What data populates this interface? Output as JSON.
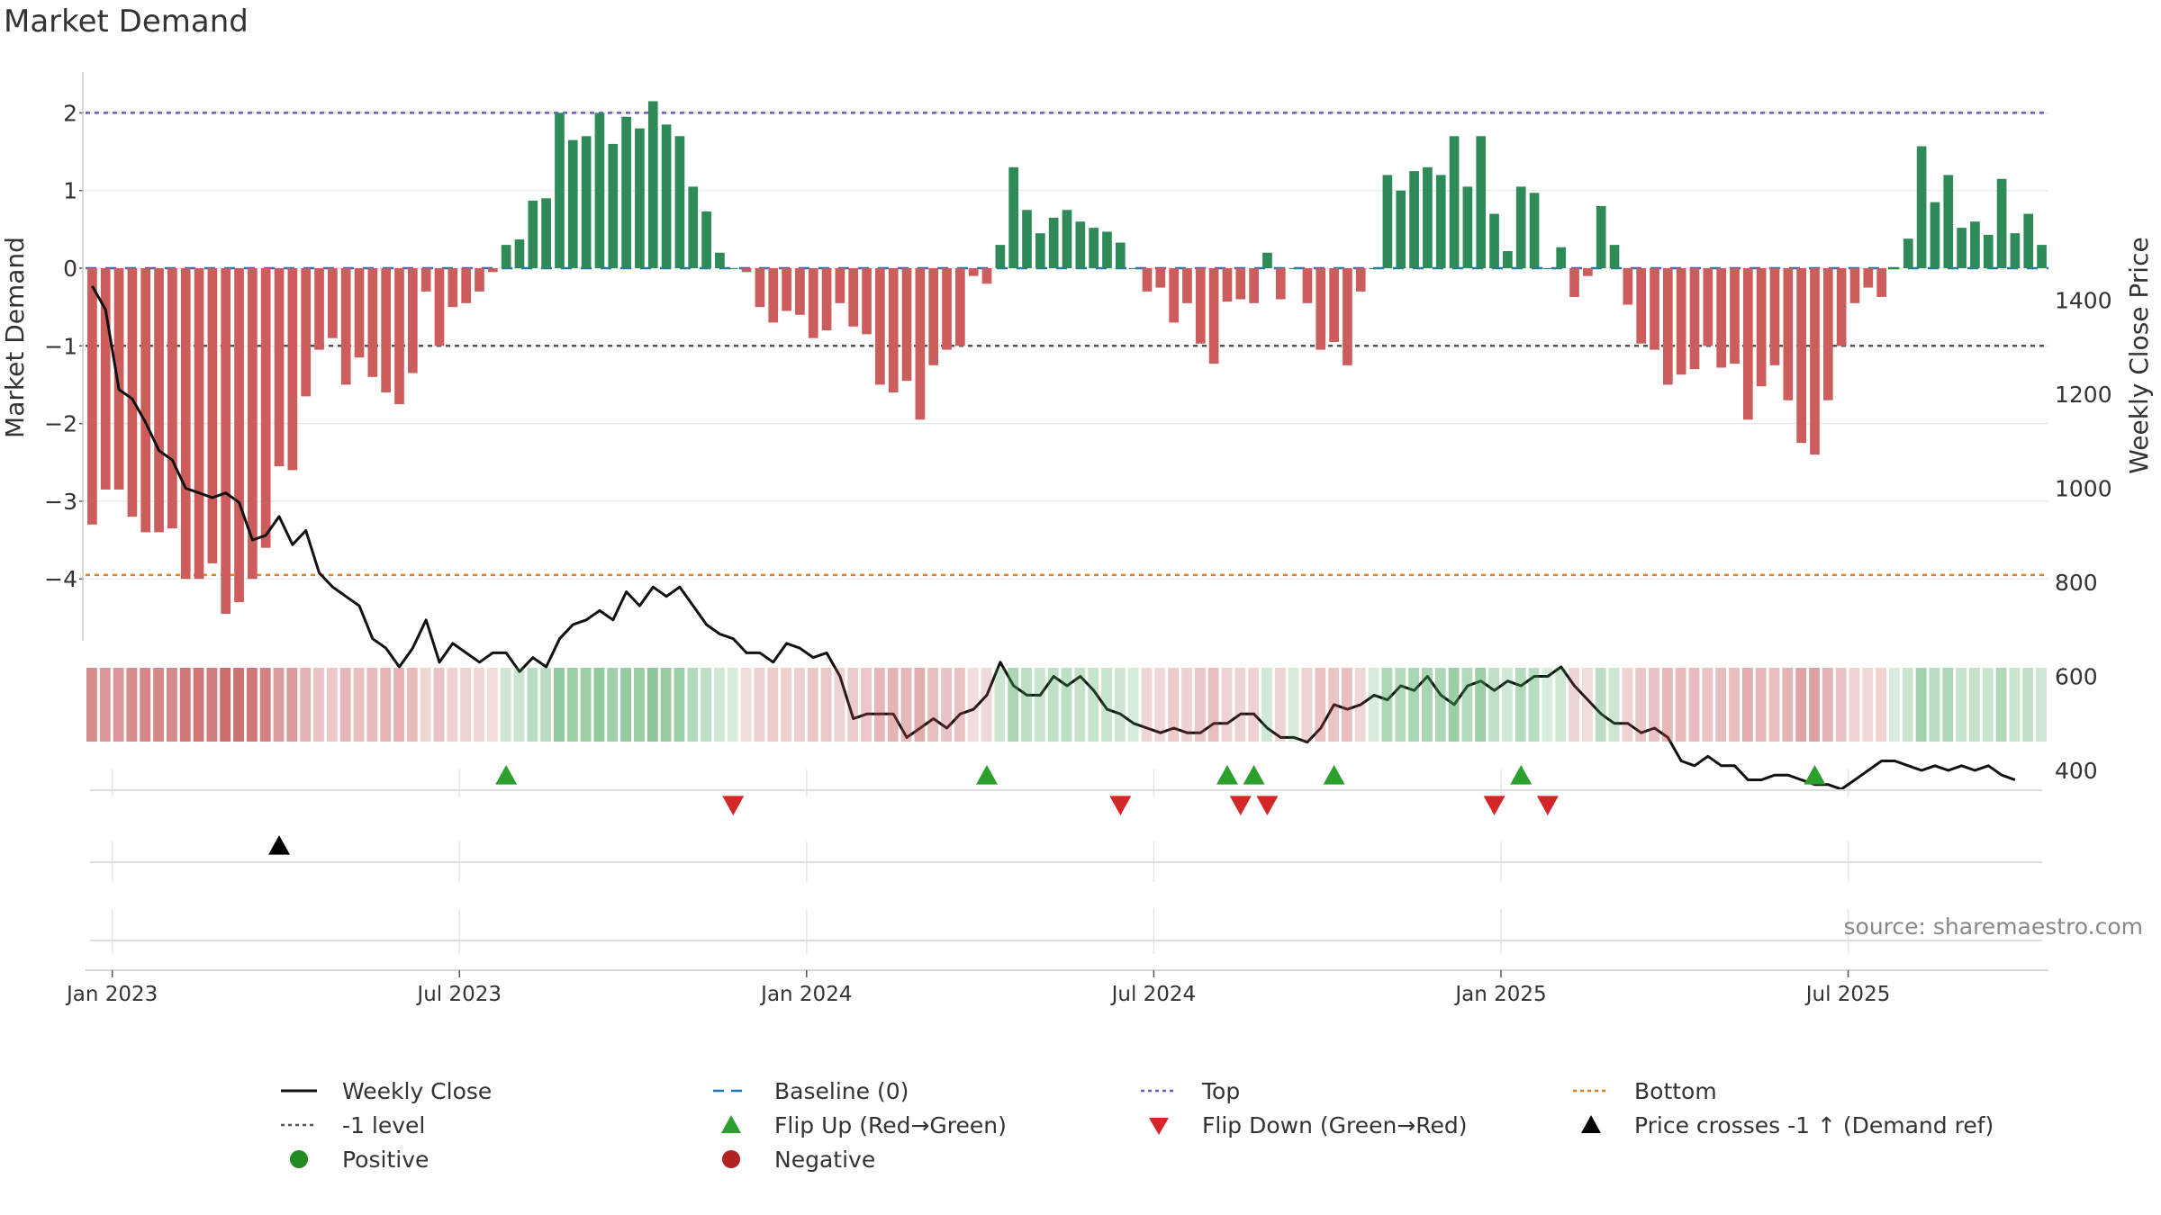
{
  "title": "Market Demand",
  "source": "source: sharemaestro.com",
  "colors": {
    "positive_bar": "#2e8b57",
    "negative_bar": "#cd5c5c",
    "price_line": "#111111",
    "baseline": "#1f77b4",
    "top": "#6a5acd",
    "bottom": "#e67e22",
    "level": "#555555",
    "flip_up": "#2ca02c",
    "flip_down": "#d62728",
    "cross": "#000000",
    "grid": "#e6e6e6",
    "positive_dot": "#228b22",
    "negative_dot": "#b22222"
  },
  "legend": [
    {
      "label": "Weekly Close",
      "symbol": "solid",
      "color": "#111111"
    },
    {
      "label": "Baseline (0)",
      "symbol": "dash",
      "color": "#1f77b4"
    },
    {
      "label": "Top",
      "symbol": "dot",
      "color": "#6a5acd"
    },
    {
      "label": "Bottom",
      "symbol": "dot",
      "color": "#e67e22"
    },
    {
      "label": "-1 level",
      "symbol": "dot",
      "color": "#555555"
    },
    {
      "label": "Flip Up (Red→Green)",
      "symbol": "tri-up",
      "color": "#2ca02c"
    },
    {
      "label": "Flip Down (Green→Red)",
      "symbol": "tri-down",
      "color": "#d62728"
    },
    {
      "label": "Price crosses -1 ↑ (Demand ref)",
      "symbol": "tri-up",
      "color": "#000000"
    },
    {
      "label": "Positive",
      "symbol": "circle",
      "color": "#228b22"
    },
    {
      "label": "Negative",
      "symbol": "circle",
      "color": "#b22222"
    }
  ],
  "chart_data": {
    "type": "bar",
    "title": "Market Demand",
    "ylabel": "Market Demand",
    "y2label": "Weekly Close Price",
    "ylim": [
      -4.8,
      2.4
    ],
    "y2lim": [
      315,
      1420
    ],
    "yticks": [
      2,
      1,
      0,
      -1,
      -2,
      -3,
      -4
    ],
    "y2ticks": [
      1400,
      1200,
      1000,
      800,
      600,
      400
    ],
    "reference_lines": {
      "top": 2,
      "level": -1,
      "bottom": -3.95,
      "baseline": 0
    },
    "date_ticks": [
      {
        "label": "Jan 2023",
        "week": 2
      },
      {
        "label": "Jul 2023",
        "week": 28
      },
      {
        "label": "Jan 2024",
        "week": 54
      },
      {
        "label": "Jul 2024",
        "week": 80
      },
      {
        "label": "Jan 2025",
        "week": 106
      },
      {
        "label": "Jul 2025",
        "week": 132
      }
    ],
    "series": [
      {
        "name": "Market Demand",
        "values": [
          -3.3,
          -2.85,
          -2.85,
          -3.2,
          -3.4,
          -3.4,
          -3.35,
          -4.0,
          -4.0,
          -3.8,
          -4.45,
          -4.3,
          -4.0,
          -3.6,
          -2.55,
          -2.6,
          -1.65,
          -1.05,
          -0.9,
          -1.5,
          -1.15,
          -1.4,
          -1.6,
          -1.75,
          -1.35,
          -0.3,
          -1.0,
          -0.5,
          -0.45,
          -0.3,
          -0.05,
          0.3,
          0.37,
          0.87,
          0.9,
          2.0,
          1.65,
          1.7,
          2.0,
          1.6,
          1.95,
          1.8,
          2.15,
          1.85,
          1.7,
          1.05,
          0.73,
          0.2,
          0.0,
          -0.05,
          -0.5,
          -0.7,
          -0.55,
          -0.6,
          -0.9,
          -0.8,
          -0.45,
          -0.75,
          -0.85,
          -1.5,
          -1.6,
          -1.45,
          -1.95,
          -1.25,
          -1.05,
          -1.0,
          -0.1,
          -0.2,
          0.3,
          1.3,
          0.75,
          0.45,
          0.65,
          0.75,
          0.6,
          0.52,
          0.47,
          0.33,
          0.0,
          -0.3,
          -0.25,
          -0.7,
          -0.45,
          -0.97,
          -1.23,
          -0.43,
          -0.4,
          -0.45,
          0.2,
          -0.4,
          0.0,
          -0.45,
          -1.05,
          -0.95,
          -1.25,
          -0.3,
          0.0,
          1.2,
          1.0,
          1.25,
          1.3,
          1.2,
          1.7,
          1.05,
          1.7,
          0.7,
          0.22,
          1.05,
          0.97,
          0.0,
          0.27,
          -0.37,
          -0.1,
          0.8,
          0.3,
          -0.47,
          -0.97,
          -1.05,
          -1.5,
          -1.37,
          -1.3,
          -1.0,
          -1.28,
          -1.23,
          -1.95,
          -1.52,
          -1.25,
          -1.7,
          -2.25,
          -2.4,
          -1.7,
          -1.0,
          -0.45,
          -0.25,
          -0.37,
          0.0,
          0.38,
          1.57,
          0.85,
          1.2,
          0.52,
          0.6,
          0.43,
          1.15,
          0.45,
          0.7,
          0.3
        ]
      },
      {
        "name": "Weekly Close",
        "values": [
          1430,
          1380,
          1210,
          1190,
          1140,
          1080,
          1060,
          1000,
          990,
          980,
          990,
          970,
          890,
          900,
          940,
          880,
          910,
          820,
          790,
          770,
          750,
          680,
          660,
          620,
          660,
          720,
          630,
          670,
          650,
          630,
          650,
          650,
          610,
          640,
          620,
          680,
          710,
          720,
          740,
          720,
          780,
          750,
          790,
          770,
          790,
          750,
          710,
          690,
          680,
          650,
          650,
          630,
          670,
          660,
          640,
          650,
          600,
          510,
          520,
          520,
          520,
          470,
          490,
          510,
          490,
          520,
          530,
          560,
          630,
          580,
          560,
          560,
          600,
          580,
          600,
          570,
          530,
          520,
          500,
          490,
          480,
          490,
          480,
          480,
          500,
          500,
          520,
          520,
          490,
          470,
          470,
          460,
          490,
          540,
          530,
          540,
          560,
          550,
          580,
          570,
          600,
          560,
          540,
          580,
          590,
          570,
          590,
          580,
          600,
          600,
          620,
          580,
          550,
          520,
          500,
          500,
          480,
          490,
          470,
          420,
          410,
          430,
          410,
          410,
          380,
          380,
          390,
          390,
          380,
          370,
          370,
          360,
          380,
          400,
          420,
          420,
          410,
          400,
          410,
          400,
          410,
          400,
          410,
          390,
          380
        ]
      }
    ],
    "flip_up_weeks": [
      31,
      67,
      85,
      87,
      93,
      107,
      129
    ],
    "flip_down_weeks": [
      48,
      77,
      86,
      88,
      105,
      109
    ],
    "cross_weeks": [
      14
    ]
  }
}
